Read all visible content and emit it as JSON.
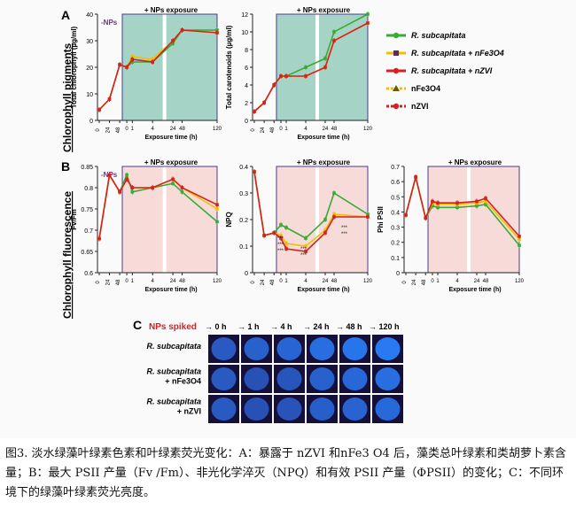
{
  "figure": {
    "panel_a_label": "A",
    "panel_b_label": "B",
    "panel_c_label": "C",
    "row_label_a": "Chlorophyll pigments",
    "row_label_b": "Chlorophyll fluorescence",
    "exposure_header": "+ NPs exposure",
    "no_nps_label": "-NPs",
    "xlabel": "Exposure time (h)",
    "legend": [
      {
        "name": "R. subcapitata",
        "color": "#3aaa35"
      },
      {
        "name": "R. subcapitata + nFe3O4",
        "color": "#f0c000"
      },
      {
        "name": "R. subcapitata + nZVI",
        "color": "#d42020"
      },
      {
        "name": "nFe3O4",
        "color": "#f0c000"
      },
      {
        "name": "nZVI",
        "color": "#d42020"
      }
    ],
    "significance_marks": [
      "***",
      "***",
      "***",
      "***",
      "***",
      "***",
      "***"
    ],
    "panel_c": {
      "header_spiked": "NPs spiked",
      "times": [
        "0 h",
        "1 h",
        "4 h",
        "24 h",
        "48 h",
        "120 h"
      ],
      "rows": [
        "R. subcapitata",
        "R. subcapitata\n+ nFe3O4",
        "R. subcapitata\n+ nZVI"
      ],
      "brightness": [
        [
          0.55,
          0.62,
          0.68,
          0.78,
          0.85,
          0.9
        ],
        [
          0.55,
          0.45,
          0.5,
          0.62,
          0.7,
          0.78
        ],
        [
          0.55,
          0.45,
          0.48,
          0.6,
          0.66,
          0.72
        ]
      ]
    }
  },
  "chart_data": [
    {
      "type": "line",
      "ylabel": "Total chlorophyll (µg/ml)",
      "xlabel": "Exposure time (h)",
      "ylim": [
        0,
        40
      ],
      "yticks": [
        0,
        10,
        20,
        30,
        40
      ],
      "xticks": [
        "0",
        "24",
        "48",
        "0",
        "1",
        "4",
        "24",
        "48",
        "120"
      ],
      "series": [
        {
          "name": "R. subcapitata",
          "values": [
            4,
            8,
            21,
            20,
            22,
            22,
            29,
            34,
            34
          ]
        },
        {
          "name": "R. subcapitata + nFe3O4",
          "values": [
            4,
            8,
            21,
            20,
            24,
            23,
            30,
            34,
            33
          ]
        },
        {
          "name": "R. subcapitata + nZVI",
          "values": [
            4,
            8,
            21,
            20,
            23,
            22,
            30,
            34,
            33
          ]
        }
      ]
    },
    {
      "type": "line",
      "ylabel": "Total carotenoids (µg/ml)",
      "xlabel": "Exposure time (h)",
      "ylim": [
        0,
        12
      ],
      "yticks": [
        0,
        2,
        4,
        6,
        8,
        10,
        12
      ],
      "xticks": [
        "0",
        "24",
        "48",
        "0",
        "1",
        "4",
        "24",
        "48",
        "120"
      ],
      "series": [
        {
          "name": "R. subcapitata",
          "values": [
            1,
            2,
            4,
            5,
            5,
            6,
            7,
            10,
            12
          ]
        },
        {
          "name": "R. subcapitata + nFe3O4",
          "values": [
            1,
            2,
            4,
            5,
            5,
            5,
            6,
            9,
            11
          ]
        },
        {
          "name": "R. subcapitata + nZVI",
          "values": [
            1,
            2,
            4,
            5,
            5,
            5,
            6,
            9,
            11
          ]
        }
      ]
    },
    {
      "type": "line",
      "ylabel": "Fv/Fm",
      "xlabel": "Exposure time (h)",
      "ylim": [
        0.6,
        0.85
      ],
      "yticks": [
        0.6,
        0.65,
        0.7,
        0.75,
        0.8,
        0.85
      ],
      "xticks": [
        "0",
        "24",
        "48",
        "0",
        "1",
        "4",
        "24",
        "48",
        "120"
      ],
      "series": [
        {
          "name": "R. subcapitata",
          "values": [
            0.68,
            0.83,
            0.79,
            0.83,
            0.79,
            0.8,
            0.81,
            0.79,
            0.72
          ]
        },
        {
          "name": "R. subcapitata + nFe3O4",
          "values": [
            0.68,
            0.83,
            0.79,
            0.82,
            0.8,
            0.8,
            0.82,
            0.8,
            0.75
          ]
        },
        {
          "name": "R. subcapitata + nZVI",
          "values": [
            0.68,
            0.83,
            0.79,
            0.82,
            0.8,
            0.8,
            0.82,
            0.8,
            0.76
          ]
        }
      ]
    },
    {
      "type": "line",
      "ylabel": "NPQ",
      "xlabel": "Exposure time (h)",
      "ylim": [
        0,
        0.4
      ],
      "yticks": [
        0,
        0.1,
        0.2,
        0.3,
        0.4
      ],
      "xticks": [
        "0",
        "24",
        "48",
        "0",
        "1",
        "4",
        "24",
        "48",
        "120"
      ],
      "series": [
        {
          "name": "R. subcapitata",
          "values": [
            0.38,
            0.14,
            0.15,
            0.18,
            0.17,
            0.13,
            0.2,
            0.3,
            0.22
          ]
        },
        {
          "name": "R. subcapitata + nFe3O4",
          "values": [
            0.38,
            0.14,
            0.15,
            0.14,
            0.11,
            0.1,
            0.16,
            0.22,
            0.21
          ]
        },
        {
          "name": "R. subcapitata + nZVI",
          "values": [
            0.38,
            0.14,
            0.15,
            0.13,
            0.09,
            0.08,
            0.15,
            0.21,
            0.21
          ]
        }
      ]
    },
    {
      "type": "line",
      "ylabel": "Phi PSII",
      "xlabel": "Exposure time (h)",
      "ylim": [
        0,
        0.7
      ],
      "yticks": [
        0,
        0.1,
        0.2,
        0.3,
        0.4,
        0.5,
        0.6,
        0.7
      ],
      "xticks": [
        "0",
        "24",
        "48",
        "0",
        "1",
        "4",
        "24",
        "48",
        "120"
      ],
      "series": [
        {
          "name": "R. subcapitata",
          "values": [
            0.38,
            0.63,
            0.36,
            0.44,
            0.43,
            0.43,
            0.44,
            0.45,
            0.18
          ]
        },
        {
          "name": "R. subcapitata + nFe3O4",
          "values": [
            0.38,
            0.63,
            0.36,
            0.46,
            0.45,
            0.45,
            0.46,
            0.47,
            0.22
          ]
        },
        {
          "name": "R. subcapitata + nZVI",
          "values": [
            0.38,
            0.63,
            0.36,
            0.47,
            0.46,
            0.46,
            0.47,
            0.49,
            0.24
          ]
        }
      ]
    }
  ],
  "caption": {
    "text": "图3. 淡水绿藻叶绿素色素和叶绿素荧光变化：A：暴露于 nZVI 和nFe3 O4 后，藻类总叶绿素和类胡萝卜素含量；B：最大 PSII 产量（Fv /Fm）、非光化学淬灭（NPQ）和有效 PSII 产量（ΦPSII）的变化；C：不同环境下的绿藻叶绿素荧光亮度。"
  }
}
